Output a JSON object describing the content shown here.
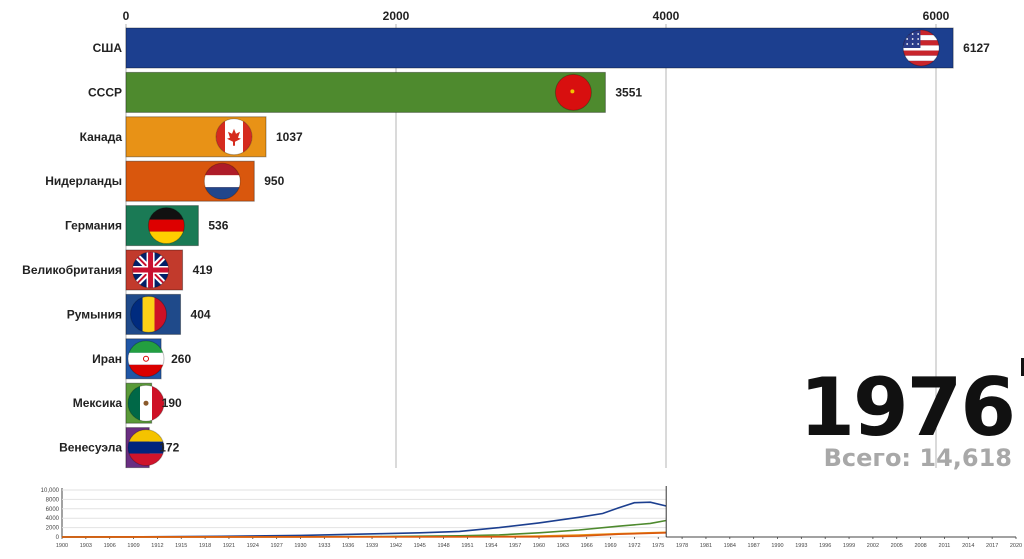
{
  "chart_data": [
    {
      "type": "bar",
      "orientation": "horizontal",
      "categories": [
        "США",
        "СССР",
        "Канада",
        "Нидерланды",
        "Германия",
        "Великобритания",
        "Румыния",
        "Иран",
        "Мексика",
        "Венесуэла"
      ],
      "values": [
        6127,
        3551,
        1037,
        950,
        536,
        419,
        404,
        260,
        190,
        172
      ],
      "colors": [
        "#1c3f8f",
        "#4e8a2e",
        "#e89216",
        "#d9570d",
        "#1a7a55",
        "#c23a2c",
        "#1f4a8a",
        "#1f56a6",
        "#5a9a38",
        "#6a2e82"
      ],
      "flags": [
        "usa-flag",
        "ussr-flag",
        "canada-flag",
        "netherlands-flag",
        "germany-flag",
        "uk-flag",
        "romania-flag",
        "iran-flag",
        "mexico-flag",
        "venezuela-flag"
      ],
      "x_ticks": [
        0,
        2000,
        4000,
        6000
      ],
      "xlim": [
        0,
        6200
      ],
      "grid": true,
      "year": "1976",
      "total_label": "Всего: 14,618"
    },
    {
      "type": "line",
      "y_ticks": [
        "10,000",
        "8000",
        "6000",
        "4000",
        "2000",
        "0"
      ],
      "ylim": [
        0,
        10000
      ],
      "x_ticks": [
        "1900",
        "1903",
        "1906",
        "1909",
        "1912",
        "1915",
        "1918",
        "1921",
        "1924",
        "1927",
        "1930",
        "1933",
        "1936",
        "1939",
        "1942",
        "1945",
        "1948",
        "1951",
        "1954",
        "1957",
        "1960",
        "1963",
        "1966",
        "1969",
        "1972",
        "1975",
        "1978",
        "1981",
        "1984",
        "1987",
        "1990",
        "1993",
        "1996",
        "1999",
        "2002",
        "2005",
        "2008",
        "2011",
        "2014",
        "2017",
        "2020"
      ],
      "xlim": [
        1900,
        2020
      ],
      "current_year": 1976,
      "series": [
        {
          "color": "#1c3f8f",
          "points": [
            [
              1900,
              0
            ],
            [
              1910,
              50
            ],
            [
              1920,
              150
            ],
            [
              1930,
              350
            ],
            [
              1940,
              700
            ],
            [
              1945,
              900
            ],
            [
              1950,
              1200
            ],
            [
              1955,
              2000
            ],
            [
              1960,
              3000
            ],
            [
              1965,
              4200
            ],
            [
              1968,
              5000
            ],
            [
              1970,
              6200
            ],
            [
              1972,
              7300
            ],
            [
              1974,
              7400
            ],
            [
              1976,
              6600
            ]
          ]
        },
        {
          "color": "#4e8a2e",
          "points": [
            [
              1900,
              0
            ],
            [
              1930,
              50
            ],
            [
              1940,
              100
            ],
            [
              1950,
              250
            ],
            [
              1955,
              450
            ],
            [
              1960,
              900
            ],
            [
              1965,
              1500
            ],
            [
              1970,
              2300
            ],
            [
              1974,
              2900
            ],
            [
              1976,
              3500
            ]
          ]
        },
        {
          "color": "#e89216",
          "points": [
            [
              1900,
              0
            ],
            [
              1950,
              50
            ],
            [
              1960,
              200
            ],
            [
              1965,
              400
            ],
            [
              1970,
              700
            ],
            [
              1976,
              1000
            ]
          ]
        },
        {
          "color": "#d9570d",
          "points": [
            [
              1900,
              0
            ],
            [
              1960,
              50
            ],
            [
              1965,
              200
            ],
            [
              1970,
              600
            ],
            [
              1976,
              900
            ]
          ]
        }
      ]
    }
  ]
}
